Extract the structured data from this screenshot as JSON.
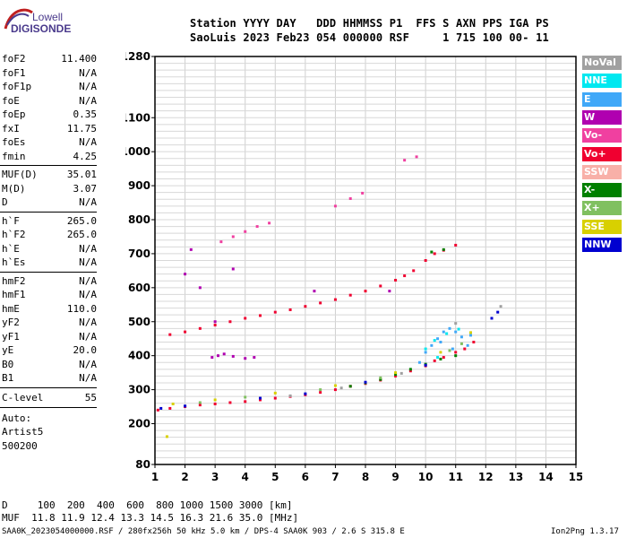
{
  "logo": {
    "line1": "Lowell",
    "line2": "DIGISONDE"
  },
  "header": {
    "row1": "Station YYYY DAY   DDD HHMMSS P1  FFS S AXN PPS IGA PS",
    "row2": "SaoLuis 2023 Feb23 054 000000 RSF     1 715 100 00- 11"
  },
  "params_group1": [
    {
      "name": "foF2",
      "value": "11.400"
    },
    {
      "name": "foF1",
      "value": "N/A"
    },
    {
      "name": "foF1p",
      "value": "N/A"
    },
    {
      "name": "foE",
      "value": "N/A"
    },
    {
      "name": "foEp",
      "value": "0.35"
    },
    {
      "name": "fxI",
      "value": "11.75"
    },
    {
      "name": "foEs",
      "value": "N/A"
    },
    {
      "name": "fmin",
      "value": "4.25"
    }
  ],
  "params_group2": [
    {
      "name": "MUF(D)",
      "value": "35.01"
    },
    {
      "name": "M(D)",
      "value": "3.07"
    },
    {
      "name": "D",
      "value": "N/A"
    }
  ],
  "params_group3": [
    {
      "name": "h`F",
      "value": "265.0"
    },
    {
      "name": "h`F2",
      "value": "265.0"
    },
    {
      "name": "h`E",
      "value": "N/A"
    },
    {
      "name": "h`Es",
      "value": "N/A"
    }
  ],
  "params_group4": [
    {
      "name": "hmF2",
      "value": "N/A"
    },
    {
      "name": "hmF1",
      "value": "N/A"
    },
    {
      "name": "hmE",
      "value": "110.0"
    },
    {
      "name": "yF2",
      "value": "N/A"
    },
    {
      "name": "yF1",
      "value": "N/A"
    },
    {
      "name": "yE",
      "value": "20.0"
    },
    {
      "name": "B0",
      "value": "N/A"
    },
    {
      "name": "B1",
      "value": "N/A"
    }
  ],
  "clevel": {
    "name": "C-level",
    "value": "55"
  },
  "auto": {
    "line1": "Auto:",
    "line2": "Artist5",
    "line3": "500200"
  },
  "legend": [
    {
      "label": "NoVal",
      "color": "#a0a0a0"
    },
    {
      "label": "NNE",
      "color": "#00e8f0"
    },
    {
      "label": "E",
      "color": "#40a8f8"
    },
    {
      "label": "W",
      "color": "#b000b0"
    },
    {
      "label": "Vo-",
      "color": "#f040a0"
    },
    {
      "label": "Vo+",
      "color": "#f00030"
    },
    {
      "label": "SSW",
      "color": "#f8b0a8"
    },
    {
      "label": "X-",
      "color": "#008000"
    },
    {
      "label": "X+",
      "color": "#80c060"
    },
    {
      "label": "SSE",
      "color": "#d8d000"
    },
    {
      "label": "NNW",
      "color": "#0000d0"
    }
  ],
  "footer": {
    "d_row": "D     100  200  400  600  800 1000 1500 3000 [km]",
    "muf_row": "MUF  11.8 11.9 12.4 13.3 14.5 16.3 21.6 35.0 [MHz]",
    "file_info": "SAA0K_2023054000000.RSF / 280fx256h 50 kHz 5.0 km / DPS-4 SAA0K 903 / 2.6 S 315.8 E",
    "version": "Ion2Png 1.3.17"
  },
  "chart_data": {
    "type": "scatter",
    "title": "",
    "xlabel": "",
    "ylabel": "",
    "xlim": [
      1,
      15
    ],
    "ylim": [
      80,
      1280
    ],
    "x_ticks": [
      1,
      2,
      3,
      4,
      5,
      6,
      7,
      8,
      9,
      10,
      11,
      12,
      13,
      14,
      15
    ],
    "y_ticks": [
      80,
      200,
      300,
      400,
      500,
      600,
      700,
      800,
      900,
      1000,
      1100,
      1280
    ],
    "grid": true,
    "series": [
      {
        "color": "#f00030",
        "points": [
          [
            1.1,
            240
          ],
          [
            1.5,
            245
          ],
          [
            2.0,
            250
          ],
          [
            2.5,
            255
          ],
          [
            3.0,
            258
          ],
          [
            3.5,
            262
          ],
          [
            4.0,
            265
          ],
          [
            4.5,
            270
          ],
          [
            5.0,
            275
          ],
          [
            5.5,
            280
          ],
          [
            6.0,
            285
          ],
          [
            6.5,
            292
          ],
          [
            7.0,
            300
          ],
          [
            7.5,
            310
          ],
          [
            8.0,
            318
          ],
          [
            8.5,
            328
          ],
          [
            9.0,
            340
          ],
          [
            9.5,
            355
          ],
          [
            10.0,
            370
          ],
          [
            10.3,
            385
          ],
          [
            10.6,
            395
          ],
          [
            11.0,
            410
          ],
          [
            11.3,
            420
          ],
          [
            11.6,
            440
          ]
        ]
      },
      {
        "color": "#f00030",
        "points": [
          [
            1.5,
            462
          ],
          [
            2.0,
            470
          ],
          [
            2.5,
            480
          ],
          [
            3.0,
            490
          ],
          [
            3.5,
            500
          ],
          [
            4.0,
            510
          ],
          [
            4.5,
            518
          ],
          [
            5.0,
            528
          ],
          [
            5.5,
            535
          ],
          [
            6.0,
            545
          ],
          [
            6.5,
            555
          ],
          [
            7.0,
            565
          ],
          [
            7.5,
            578
          ],
          [
            8.0,
            590
          ],
          [
            8.5,
            605
          ],
          [
            9.0,
            622
          ],
          [
            9.3,
            635
          ],
          [
            9.6,
            650
          ],
          [
            10.0,
            680
          ],
          [
            10.3,
            700
          ],
          [
            10.6,
            710
          ],
          [
            11.0,
            725
          ]
        ]
      },
      {
        "color": "#40a8f8",
        "points": [
          [
            9.8,
            380
          ],
          [
            10.0,
            410
          ],
          [
            10.2,
            430
          ],
          [
            10.4,
            450
          ],
          [
            10.6,
            470
          ],
          [
            10.8,
            480
          ],
          [
            11.0,
            470
          ],
          [
            11.2,
            455
          ],
          [
            10.5,
            440
          ],
          [
            10.9,
            420
          ],
          [
            11.4,
            430
          ],
          [
            11.5,
            460
          ]
        ]
      },
      {
        "color": "#008000",
        "points": [
          [
            7.5,
            310
          ],
          [
            8.0,
            320
          ],
          [
            8.5,
            330
          ],
          [
            9.0,
            345
          ],
          [
            9.5,
            360
          ],
          [
            10.0,
            375
          ],
          [
            10.5,
            390
          ],
          [
            11.0,
            400
          ],
          [
            10.2,
            705
          ],
          [
            10.6,
            712
          ]
        ]
      },
      {
        "color": "#b000b0",
        "points": [
          [
            2.9,
            395
          ],
          [
            3.1,
            400
          ],
          [
            3.3,
            405
          ],
          [
            3.6,
            398
          ],
          [
            4.0,
            392
          ],
          [
            4.3,
            395
          ],
          [
            2.2,
            712
          ],
          [
            2.0,
            640
          ],
          [
            2.5,
            600
          ],
          [
            6.3,
            590
          ],
          [
            8.8,
            590
          ],
          [
            3.6,
            655
          ],
          [
            3.0,
            500
          ]
        ]
      },
      {
        "color": "#f040a0",
        "points": [
          [
            3.2,
            735
          ],
          [
            3.6,
            750
          ],
          [
            4.0,
            765
          ],
          [
            4.4,
            780
          ],
          [
            4.8,
            790
          ],
          [
            7.0,
            840
          ],
          [
            7.5,
            862
          ],
          [
            7.9,
            878
          ],
          [
            9.3,
            975
          ],
          [
            9.7,
            985
          ]
        ]
      },
      {
        "color": "#0000d0",
        "points": [
          [
            1.2,
            245
          ],
          [
            2.0,
            252
          ],
          [
            4.5,
            275
          ],
          [
            6.0,
            288
          ],
          [
            8.0,
            322
          ],
          [
            10.0,
            372
          ],
          [
            12.2,
            510
          ],
          [
            12.4,
            528
          ]
        ]
      },
      {
        "color": "#d8d000",
        "points": [
          [
            1.6,
            258
          ],
          [
            3.0,
            270
          ],
          [
            5.0,
            290
          ],
          [
            7.0,
            312
          ],
          [
            9.0,
            350
          ],
          [
            10.5,
            410
          ],
          [
            1.4,
            162
          ],
          [
            11.5,
            468
          ]
        ]
      },
      {
        "color": "#80c060",
        "points": [
          [
            2.5,
            262
          ],
          [
            4.0,
            278
          ],
          [
            6.5,
            300
          ],
          [
            8.5,
            335
          ],
          [
            10.8,
            415
          ],
          [
            11.2,
            435
          ]
        ]
      },
      {
        "color": "#00e8f0",
        "points": [
          [
            10.0,
            420
          ],
          [
            10.3,
            445
          ],
          [
            10.7,
            465
          ],
          [
            11.1,
            478
          ],
          [
            10.4,
            395
          ]
        ]
      },
      {
        "color": "#a0a0a0",
        "points": [
          [
            5.5,
            282
          ],
          [
            7.2,
            305
          ],
          [
            9.2,
            348
          ],
          [
            11.0,
            495
          ],
          [
            12.5,
            545
          ]
        ]
      }
    ]
  }
}
